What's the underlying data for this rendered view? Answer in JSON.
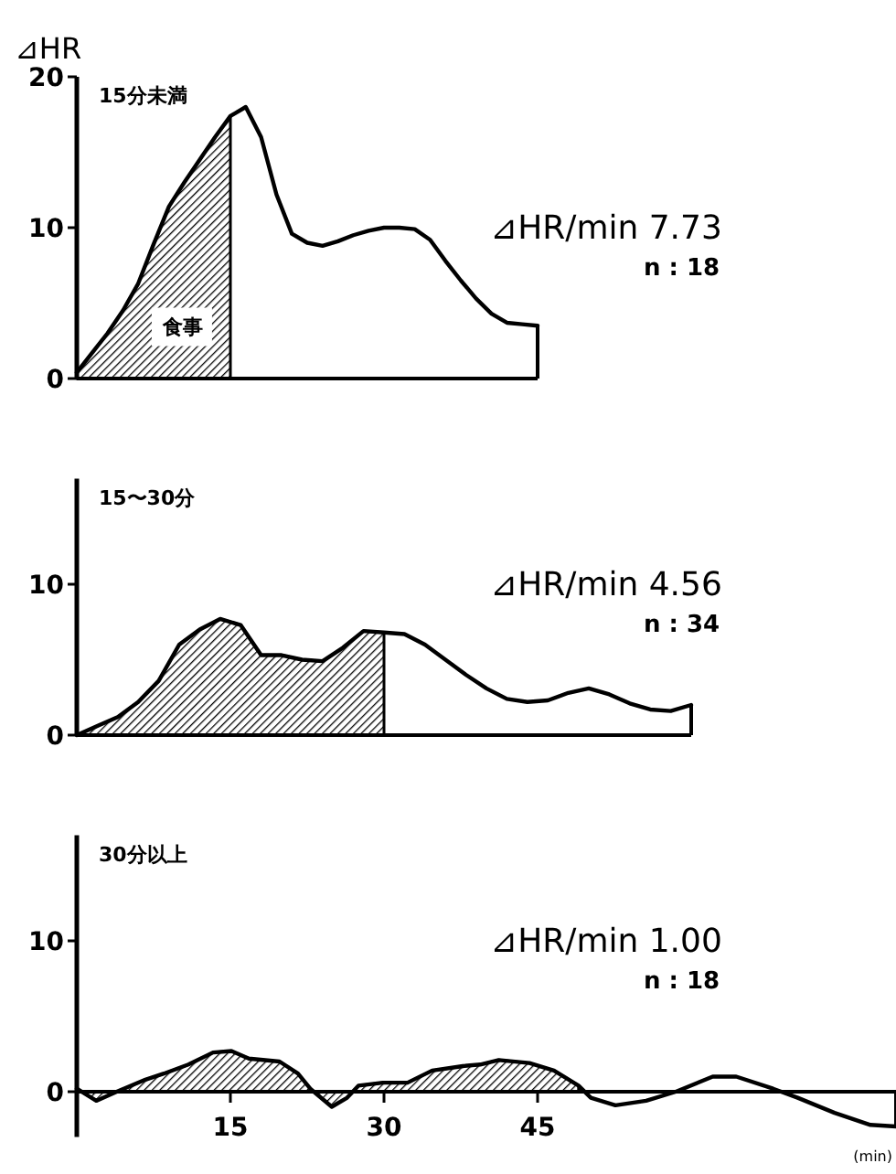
{
  "chart_data": [
    {
      "type": "line",
      "title": "15分未満",
      "ylabel": "⊿HR",
      "categories": [
        null,
        null,
        null,
        null,
        null,
        null,
        null,
        null,
        null,
        null,
        null,
        null,
        null,
        null,
        null,
        null,
        null,
        null,
        null,
        null,
        null,
        null,
        null,
        null,
        null,
        null,
        null,
        null,
        null,
        null,
        null
      ],
      "ylim": [
        0,
        20
      ],
      "yticks": [
        0,
        10,
        20
      ],
      "tick_labels": "y",
      "annotations": [
        "⊿HR/min  7.73",
        "n : 18",
        "食事"
      ],
      "series": [
        {
          "type": "area",
          "color": "#000000",
          "values": [
            0.4,
            1.7,
            3.0,
            4.5,
            6.3,
            8.9,
            11.4,
            13.0,
            14.5,
            16.0,
            17.4,
            null,
            null,
            null,
            null,
            null,
            null,
            null,
            null,
            null,
            null,
            null,
            null,
            null,
            null,
            null,
            null,
            null,
            null,
            null,
            null
          ]
        },
        {
          "type": "line",
          "color": "#000000",
          "values": [
            0.4,
            1.7,
            3.0,
            4.5,
            6.3,
            8.9,
            11.4,
            13.0,
            14.5,
            16.0,
            17.4,
            18.0,
            16.0,
            12.2,
            9.6,
            9.0,
            8.8,
            9.1,
            9.5,
            9.8,
            10.0,
            10.0,
            9.9,
            9.2,
            7.8,
            6.5,
            5.3,
            4.3,
            3.7,
            3.6,
            3.5
          ]
        }
      ]
    },
    {
      "type": "line",
      "title": "15〜30分",
      "categories": [
        null,
        null,
        null,
        null,
        null,
        null,
        null,
        null,
        null,
        null,
        null,
        null,
        null,
        null,
        null,
        null,
        null,
        null,
        null,
        null,
        null,
        null,
        null,
        null,
        null,
        null,
        null,
        null,
        null,
        null,
        null
      ],
      "ylim": [
        0,
        17
      ],
      "yticks": [
        0,
        10
      ],
      "tick_labels": "y",
      "annotations": [
        "⊿HR/min  4.56",
        "n : 34"
      ],
      "series": [
        {
          "type": "area",
          "color": "#000000",
          "values": [
            0,
            0.6,
            1.2,
            2.2,
            3.6,
            6.0,
            7.0,
            7.7,
            7.3,
            5.3,
            5.3,
            5.0,
            4.9,
            5.8,
            6.9,
            6.8,
            null,
            null,
            null,
            null,
            null,
            null,
            null,
            null,
            null,
            null,
            null,
            null,
            null,
            null,
            null
          ]
        },
        {
          "type": "line",
          "color": "#000000",
          "values": [
            0,
            0.6,
            1.2,
            2.2,
            3.6,
            6.0,
            7.0,
            7.7,
            7.3,
            5.3,
            5.3,
            5.0,
            4.9,
            5.8,
            6.9,
            6.8,
            6.7,
            6.0,
            5.0,
            4.0,
            3.1,
            2.4,
            2.2,
            2.3,
            2.8,
            3.1,
            2.7,
            2.1,
            1.7,
            1.6,
            2.0
          ]
        }
      ]
    },
    {
      "type": "line",
      "title": "30分以上",
      "xlabel": "(min)",
      "xlim": [
        0,
        80
      ],
      "ylim": [
        -3,
        17
      ],
      "xticks": [
        15,
        30,
        45
      ],
      "yticks": [
        0,
        10
      ],
      "annotations": [
        "⊿HR/min  1.00",
        "n : 18"
      ],
      "series": [
        {
          "type": "area",
          "color": "#000000",
          "x": [
            0,
            1.9,
            3.9,
            6.7,
            8.5,
            10.9,
            13.3,
            15.1,
            16.8,
            19.8,
            21.6,
            22.8,
            24.9,
            26.4,
            27.5,
            29.9,
            32.3,
            34.7,
            37.7,
            39.4,
            41.2,
            44.2,
            46.6,
            49
          ],
          "values": [
            0.2,
            -0.6,
            0,
            0.8,
            1.2,
            1.8,
            2.6,
            2.7,
            2.2,
            2.0,
            1.2,
            0.2,
            -1.0,
            -0.4,
            0.4,
            0.6,
            0.6,
            1.4,
            1.7,
            1.8,
            2.1,
            1.9,
            1.4,
            0.4
          ]
        },
        {
          "type": "line",
          "color": "#000000",
          "x": [
            0,
            1.9,
            3.9,
            6.7,
            8.5,
            10.9,
            13.3,
            15.1,
            16.8,
            19.8,
            21.6,
            22.8,
            24.9,
            26.4,
            27.5,
            29.9,
            32.3,
            34.7,
            37.7,
            39.4,
            41.2,
            44.2,
            46.6,
            49,
            50.2,
            52.6,
            55.6,
            58.5,
            62.1,
            64.4,
            68,
            70.4,
            74,
            77.5,
            80
          ],
          "values": [
            0.2,
            -0.6,
            0,
            0.8,
            1.2,
            1.8,
            2.6,
            2.7,
            2.2,
            2.0,
            1.2,
            0.2,
            -1.0,
            -0.4,
            0.4,
            0.6,
            0.6,
            1.4,
            1.7,
            1.8,
            2.1,
            1.9,
            1.4,
            0.4,
            -0.4,
            -0.9,
            -0.6,
            0,
            1.0,
            1.0,
            0.2,
            -0.4,
            -1.4,
            -2.2,
            -2.3
          ]
        }
      ]
    }
  ]
}
